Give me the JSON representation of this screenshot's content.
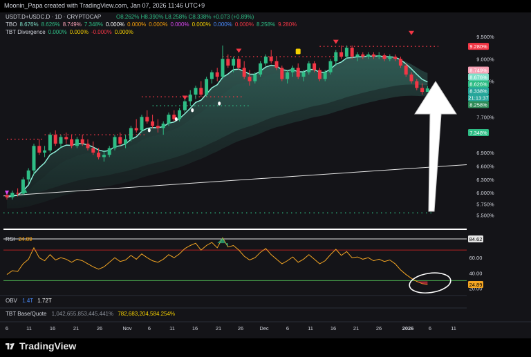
{
  "header": {
    "title": "Moonin_Papa created with TradingView.com, Jan 07, 2026 11:46 UTC+9"
  },
  "percent_toggle": "%",
  "legend": {
    "symbol": "USDT.D+USDC.D · 1D · CRYPTOCAP",
    "ohlc_o": "O8.262%",
    "ohlc_h": "H8.390%",
    "ohlc_l": "L8.258%",
    "ohlc_c": "C8.338%",
    "ohlc_chg": "+0.073 (+0.89%)",
    "tbo_label": "TBO",
    "tbo_values": [
      "8.676%",
      "8.626%",
      "8.749%",
      "7.348%",
      "0.000%",
      "0.000%",
      "0.000%",
      "0.000%",
      "0.000%",
      "0.000%",
      "0.000%",
      "8.258%",
      "9.280%"
    ],
    "tbt_label": "TBT Divergence",
    "tbt_values": [
      "0.000%",
      "0.000%",
      "-0.000%",
      "0.000%"
    ],
    "rsi_label": "RSI",
    "rsi_value": "24.89",
    "obv_label": "OBV",
    "obv_v1": "1.4T",
    "obv_v2": "1.72T",
    "tbt_bq_label": "TBT Base/Quote",
    "tbt_bq_v1": "1,042,655,853,445.441%",
    "tbt_bq_v2": "782,683,204,584.254%"
  },
  "price_axis": {
    "ticks": [
      "9.500%",
      "9.000%",
      "8.500%",
      "7.700%",
      "6.900%",
      "6.600%",
      "6.300%",
      "6.000%",
      "5.750%",
      "5.500%"
    ],
    "labels": [
      {
        "text": "9.280%",
        "color": "#f23645"
      },
      {
        "text": "8.749%",
        "color": "#f7a1b5"
      },
      {
        "text": "8.676%",
        "color": "#7fe0c9"
      },
      {
        "text": "8.626%",
        "color": "#2ebd85"
      },
      {
        "text": "8.338%",
        "color": "#26a69a"
      },
      {
        "text": "21:13:37",
        "color": "#26a69a"
      },
      {
        "text": "8.258%",
        "color": "#2e8b57"
      },
      {
        "text": "7.348%",
        "color": "#2ebd85"
      }
    ]
  },
  "rsi_axis": {
    "ticks": [
      "84.62",
      "60.00",
      "40.00",
      "20.00"
    ],
    "current": "24.89"
  },
  "time_axis": [
    "6",
    "11",
    "16",
    "21",
    "26",
    "Nov",
    "6",
    "11",
    "16",
    "21",
    "26",
    "Dec",
    "6",
    "11",
    "16",
    "21",
    "26",
    "2026",
    "6",
    "11"
  ],
  "footer": {
    "brand": "TradingView"
  },
  "chart_data": {
    "type": "candlestick",
    "price_unit": "%",
    "ylim": [
      5.4,
      9.7
    ],
    "candles": [
      [
        5.95,
        6.0,
        5.85,
        5.9
      ],
      [
        5.9,
        6.05,
        5.85,
        6.0
      ],
      [
        6.0,
        6.1,
        5.92,
        5.98
      ],
      [
        5.98,
        6.35,
        5.95,
        6.3
      ],
      [
        6.3,
        6.55,
        6.2,
        6.5
      ],
      [
        6.5,
        7.1,
        6.4,
        7.05
      ],
      [
        7.05,
        7.2,
        6.85,
        6.9
      ],
      [
        6.9,
        7.05,
        6.8,
        6.95
      ],
      [
        6.95,
        7.35,
        6.9,
        7.3
      ],
      [
        7.3,
        7.4,
        7.05,
        7.1
      ],
      [
        7.1,
        7.3,
        7.0,
        7.25
      ],
      [
        7.25,
        7.35,
        7.1,
        7.2
      ],
      [
        7.2,
        7.3,
        7.0,
        7.05
      ],
      [
        7.05,
        7.25,
        7.0,
        7.2
      ],
      [
        7.2,
        7.3,
        7.05,
        7.1
      ],
      [
        7.1,
        7.2,
        6.95,
        7.0
      ],
      [
        7.0,
        7.15,
        6.85,
        6.9
      ],
      [
        6.9,
        7.0,
        6.75,
        6.8
      ],
      [
        6.8,
        6.95,
        6.7,
        6.85
      ],
      [
        6.85,
        7.05,
        6.8,
        7.0
      ],
      [
        7.0,
        7.3,
        6.95,
        7.25
      ],
      [
        7.25,
        7.35,
        7.05,
        7.1
      ],
      [
        7.1,
        7.3,
        7.0,
        7.2
      ],
      [
        7.2,
        7.5,
        7.15,
        7.45
      ],
      [
        7.45,
        7.65,
        7.35,
        7.4
      ],
      [
        7.4,
        7.75,
        7.35,
        7.7
      ],
      [
        7.7,
        7.85,
        7.55,
        7.6
      ],
      [
        7.6,
        7.75,
        7.45,
        7.5
      ],
      [
        7.5,
        7.65,
        7.35,
        7.45
      ],
      [
        7.45,
        7.6,
        7.3,
        7.55
      ],
      [
        7.55,
        7.8,
        7.5,
        7.75
      ],
      [
        7.75,
        7.85,
        7.6,
        7.65
      ],
      [
        7.65,
        7.9,
        7.6,
        7.85
      ],
      [
        7.85,
        8.1,
        7.8,
        8.05
      ],
      [
        8.05,
        8.3,
        7.95,
        8.2
      ],
      [
        8.2,
        8.4,
        8.1,
        8.35
      ],
      [
        8.35,
        8.5,
        8.15,
        8.2
      ],
      [
        8.2,
        8.6,
        8.15,
        8.55
      ],
      [
        8.55,
        8.75,
        8.45,
        8.7
      ],
      [
        8.7,
        8.8,
        8.5,
        8.6
      ],
      [
        8.6,
        9.3,
        8.55,
        9.0
      ],
      [
        9.0,
        9.1,
        8.8,
        8.85
      ],
      [
        8.85,
        9.05,
        8.7,
        9.0
      ],
      [
        9.0,
        9.05,
        8.75,
        8.8
      ],
      [
        8.8,
        8.95,
        8.55,
        8.6
      ],
      [
        8.6,
        8.75,
        8.4,
        8.5
      ],
      [
        8.5,
        8.7,
        8.45,
        8.65
      ],
      [
        8.65,
        8.95,
        8.6,
        8.9
      ],
      [
        8.9,
        9.1,
        8.85,
        9.05
      ],
      [
        9.05,
        9.2,
        8.9,
        8.95
      ],
      [
        8.95,
        9.05,
        8.75,
        8.8
      ],
      [
        8.8,
        8.85,
        8.5,
        8.55
      ],
      [
        8.55,
        8.75,
        8.45,
        8.7
      ],
      [
        8.7,
        8.85,
        8.6,
        8.8
      ],
      [
        8.8,
        8.9,
        8.55,
        8.6
      ],
      [
        8.6,
        8.75,
        8.5,
        8.7
      ],
      [
        8.7,
        8.95,
        8.65,
        8.9
      ],
      [
        8.9,
        8.95,
        8.7,
        8.75
      ],
      [
        8.75,
        8.8,
        8.5,
        8.55
      ],
      [
        8.55,
        8.75,
        8.5,
        8.7
      ],
      [
        8.7,
        9.0,
        8.65,
        8.95
      ],
      [
        8.95,
        9.2,
        8.85,
        9.15
      ],
      [
        9.15,
        9.3,
        9.0,
        9.05
      ],
      [
        9.05,
        9.3,
        9.0,
        9.25
      ],
      [
        9.25,
        9.3,
        9.0,
        9.05
      ],
      [
        9.05,
        9.15,
        8.95,
        9.1
      ],
      [
        9.1,
        9.15,
        9.0,
        9.05
      ],
      [
        9.05,
        9.15,
        9.0,
        9.1
      ],
      [
        9.1,
        9.15,
        9.0,
        9.05
      ],
      [
        9.05,
        9.15,
        9.0,
        9.08
      ],
      [
        9.08,
        9.12,
        8.95,
        9.0
      ],
      [
        9.0,
        9.1,
        8.95,
        9.05
      ],
      [
        9.05,
        9.1,
        8.95,
        9.0
      ],
      [
        9.0,
        9.05,
        8.8,
        8.85
      ],
      [
        8.85,
        8.9,
        8.6,
        8.65
      ],
      [
        8.65,
        8.7,
        8.45,
        8.5
      ],
      [
        8.5,
        8.55,
        8.3,
        8.35
      ],
      [
        8.35,
        8.45,
        8.2,
        8.26
      ],
      [
        8.26,
        8.39,
        8.258,
        8.338
      ]
    ],
    "rsi": [
      38,
      43,
      42,
      52,
      58,
      73,
      60,
      56,
      64,
      57,
      60,
      58,
      54,
      58,
      56,
      52,
      48,
      45,
      48,
      54,
      60,
      55,
      57,
      63,
      58,
      65,
      60,
      56,
      54,
      58,
      64,
      60,
      65,
      72,
      76,
      79,
      70,
      76,
      80,
      73,
      86,
      74,
      76,
      70,
      62,
      57,
      60,
      67,
      72,
      64,
      58,
      52,
      56,
      61,
      54,
      58,
      64,
      58,
      52,
      56,
      64,
      71,
      63,
      68,
      60,
      61,
      58,
      60,
      56,
      58,
      55,
      57,
      52,
      44,
      38,
      33,
      29,
      26,
      24.89
    ],
    "rsi_levels": {
      "upper": 70,
      "lower": 30
    }
  }
}
